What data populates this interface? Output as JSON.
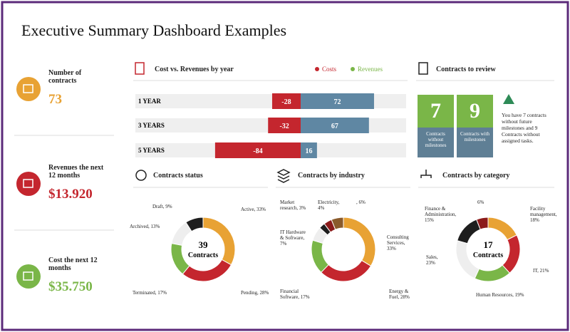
{
  "title": "Executive Summary Dashboard Examples",
  "kpis": [
    {
      "label": "Number of contracts",
      "value": "73",
      "color": "#e8a234"
    },
    {
      "label": "Revenues the next 12 months",
      "value": "$13.920",
      "color": "#c4262e"
    },
    {
      "label": "Cost the next 12 months",
      "value": "$35.750",
      "color": "#7ab648"
    }
  ],
  "review": {
    "title": "Contracts to review",
    "tiles": [
      {
        "value": "7",
        "label": "Contracts without milestones"
      },
      {
        "value": "9",
        "label": "Contracts with milestones"
      }
    ],
    "note": "You have 7 contracts without future milestones and 9 Contracts without assigned tasks."
  },
  "chart_data": [
    {
      "type": "diverging-bar",
      "title": "Cost vs. Revenues by year",
      "categories": [
        "1 YEAR",
        "3 YEARS",
        "5 YEARS"
      ],
      "series": [
        {
          "name": "Costs",
          "color": "#c4262e",
          "legend_color": "#c4262e",
          "values": [
            -28,
            -32,
            -84
          ]
        },
        {
          "name": "Revenues",
          "color": "#5f87a3",
          "legend_color": "#7ab648",
          "values": [
            72,
            67,
            16
          ]
        }
      ]
    },
    {
      "type": "donut",
      "title": "Contracts status",
      "center_value": "39",
      "center_label": "Contracts",
      "values": [
        33,
        28,
        17,
        13,
        9
      ],
      "value_labels": [
        "Active, 33%",
        "Pending, 28%",
        "Terminated, 17%",
        "Archived, 13%",
        "Draft, 9%"
      ],
      "colors": [
        "#e8a234",
        "#c4262e",
        "#7ab648",
        "#eeeeee",
        "#1e1e1e"
      ]
    },
    {
      "type": "donut",
      "title": "Contracts by industry",
      "values": [
        33,
        28,
        17,
        7,
        3,
        4,
        6
      ],
      "value_labels": [
        "Consulting Services, 33%",
        "Energy & Fuel, 28%",
        "Financial Software, 17%",
        "IT Hardware & Software, 7%",
        "Market research, 3%",
        "Electricity, 4%",
        ", 6%"
      ],
      "colors": [
        "#e8a234",
        "#c4262e",
        "#7ab648",
        "#eeeeee",
        "#1e1e1e",
        "#8b1a1a",
        "#8a5a2b"
      ]
    },
    {
      "type": "donut",
      "title": "Contracts by category",
      "center_value": "17",
      "center_label": "Contracts",
      "values": [
        18,
        21,
        19,
        23,
        15,
        6
      ],
      "value_labels": [
        "Facility management, 18%",
        "IT, 21%",
        "Human Resources, 19%",
        "Sales, 23%",
        "Finance & Administration, 15%",
        "6%"
      ],
      "colors": [
        "#e8a234",
        "#c4262e",
        "#7ab648",
        "#eeeeee",
        "#1e1e1e",
        "#8b1a1a"
      ]
    }
  ]
}
